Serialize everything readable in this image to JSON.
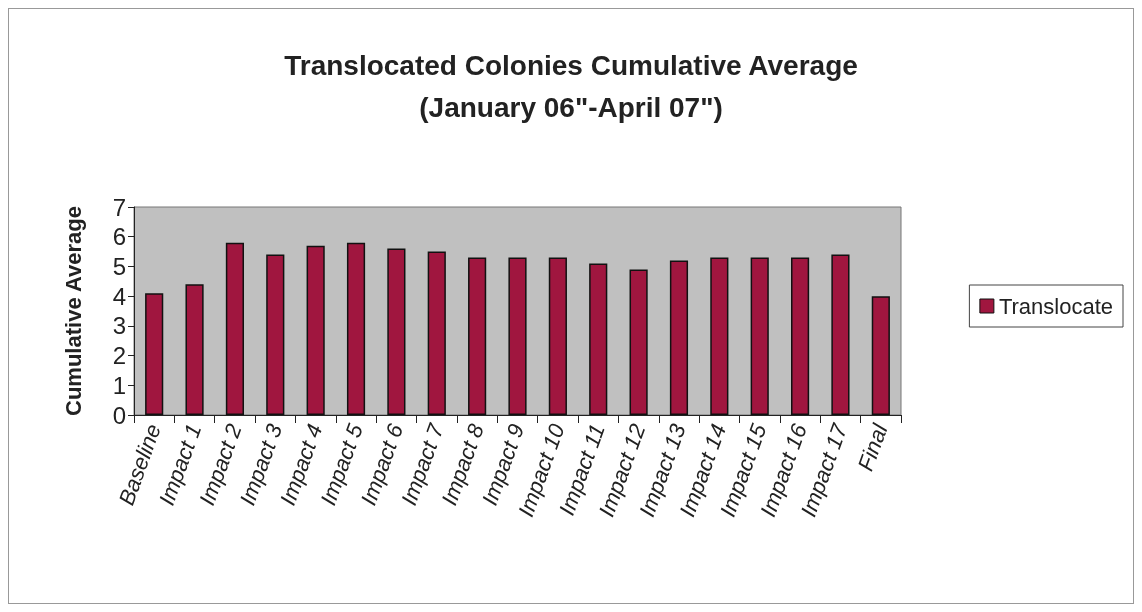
{
  "chart_data": {
    "type": "bar",
    "title": "Translocated Colonies Cumulative Average\n(January 06\"-April 07\")",
    "ylabel": "Cumulative Average",
    "categories": [
      "Baseline",
      "Impact 1",
      "Impact 2",
      "Impact 3",
      "Impact 4",
      "Impact 5",
      "Impact 6",
      "Impact 7",
      "Impact 8",
      "Impact 9",
      "Impact 10",
      "Impact 11",
      "Impact 12",
      "Impact 13",
      "Impact 14",
      "Impact 15",
      "Impact 16",
      "Impact 17",
      "Final"
    ],
    "series": [
      {
        "name": "Translocate",
        "color": "#a0163f",
        "values": [
          4.1,
          4.4,
          5.8,
          5.4,
          5.7,
          5.8,
          5.6,
          5.5,
          5.3,
          5.3,
          5.3,
          5.1,
          4.9,
          5.2,
          5.3,
          5.3,
          5.3,
          5.4,
          4.0
        ]
      }
    ],
    "ylim": [
      0,
      7
    ],
    "yticks": [
      0,
      1,
      2,
      3,
      4,
      5,
      6,
      7
    ],
    "legend": "right",
    "grid": false
  }
}
